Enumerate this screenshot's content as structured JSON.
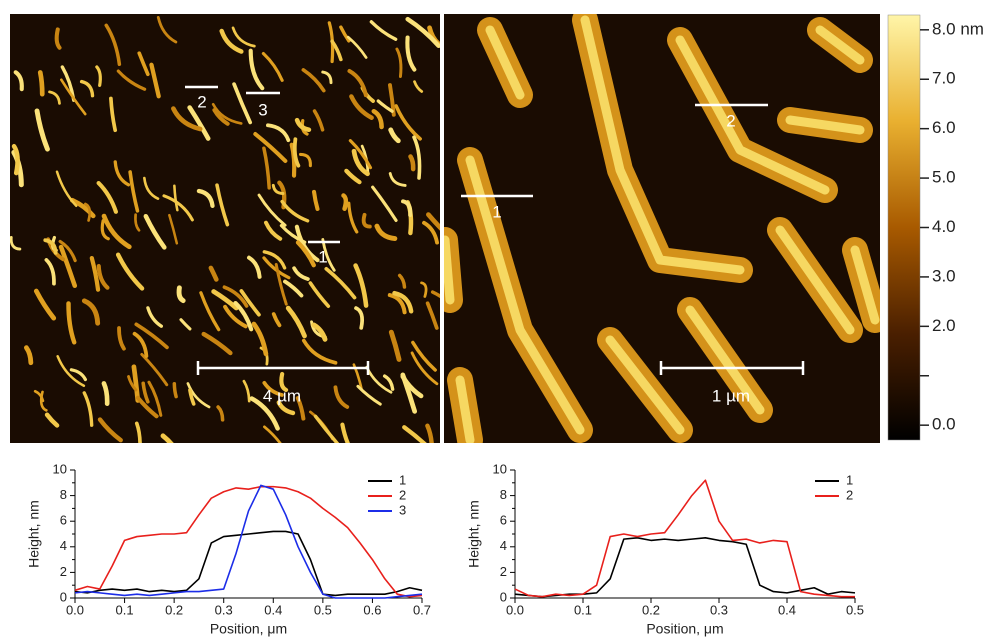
{
  "images": [
    {
      "scale_bar": "4 µm",
      "markers": [
        "1",
        "2",
        "3"
      ]
    },
    {
      "scale_bar": "1 µm",
      "markers": [
        "1",
        "2"
      ]
    }
  ],
  "colorbar": {
    "lim": [
      -0.3,
      8.3
    ],
    "ticks": [
      {
        "value": 8,
        "label": "8.0 nm"
      },
      {
        "value": 7,
        "label": "7.0"
      },
      {
        "value": 6,
        "label": "6.0"
      },
      {
        "value": 5,
        "label": "5.0"
      },
      {
        "value": 4,
        "label": "4.0"
      },
      {
        "value": 3,
        "label": "3.0"
      },
      {
        "value": 2,
        "label": "2.0"
      },
      {
        "value": 0,
        "label": "0.0"
      }
    ],
    "minor_ticks": [
      1
    ]
  },
  "chart_data": [
    {
      "type": "line",
      "xlabel": "Position, μm",
      "ylabel": "Height, nm",
      "x": [
        0,
        0.025,
        0.05,
        0.075,
        0.1,
        0.125,
        0.15,
        0.175,
        0.2,
        0.225,
        0.25,
        0.275,
        0.3,
        0.325,
        0.35,
        0.375,
        0.4,
        0.425,
        0.45,
        0.475,
        0.5,
        0.525,
        0.55,
        0.575,
        0.6,
        0.625,
        0.65,
        0.675,
        0.7
      ],
      "xlim": [
        0,
        0.7
      ],
      "xticks": [
        {
          "value": 0,
          "label": "0.0"
        },
        {
          "value": 0.1,
          "label": "0.1"
        },
        {
          "value": 0.2,
          "label": "0.2"
        },
        {
          "value": 0.3,
          "label": "0.3"
        },
        {
          "value": 0.4,
          "label": "0.4"
        },
        {
          "value": 0.5,
          "label": "0.5"
        },
        {
          "value": 0.6,
          "label": "0.6"
        },
        {
          "value": 0.7,
          "label": "0.7"
        }
      ],
      "ylim": [
        0,
        10
      ],
      "yticks": [
        0,
        2,
        4,
        6,
        8,
        10
      ],
      "series": [
        {
          "name": "1",
          "color": "#000000",
          "values": [
            0.5,
            0.4,
            0.6,
            0.7,
            0.6,
            0.7,
            0.5,
            0.6,
            0.5,
            0.6,
            1.5,
            4.3,
            4.8,
            4.9,
            5.0,
            5.1,
            5.2,
            5.2,
            5.0,
            3.0,
            0.3,
            0.2,
            0.3,
            0.3,
            0.3,
            0.3,
            0.5,
            0.8,
            0.6
          ]
        },
        {
          "name": "2",
          "color": "#e8201c",
          "values": [
            0.6,
            0.9,
            0.7,
            2.5,
            4.5,
            4.8,
            4.9,
            5.0,
            5.0,
            5.1,
            6.5,
            7.8,
            8.3,
            8.6,
            8.5,
            8.7,
            8.7,
            8.6,
            8.3,
            7.8,
            7.0,
            6.3,
            5.5,
            4.3,
            3.0,
            1.5,
            0.3,
            0.1,
            0.2
          ]
        },
        {
          "name": "3",
          "color": "#1c2de8",
          "values": [
            0.4,
            0.5,
            0.4,
            0.3,
            0.2,
            0.3,
            0.2,
            0.3,
            0.4,
            0.5,
            0.5,
            0.6,
            0.7,
            3.5,
            6.8,
            8.8,
            8.5,
            6.5,
            4.0,
            2.0,
            0.3,
            0,
            0,
            0,
            0,
            0,
            0.1,
            0.2,
            0.3
          ]
        }
      ]
    },
    {
      "type": "line",
      "xlabel": "Position, μm",
      "ylabel": "Height, nm",
      "x": [
        0,
        0.02,
        0.04,
        0.06,
        0.08,
        0.1,
        0.12,
        0.14,
        0.16,
        0.18,
        0.2,
        0.22,
        0.24,
        0.26,
        0.28,
        0.3,
        0.32,
        0.34,
        0.36,
        0.38,
        0.4,
        0.42,
        0.44,
        0.46,
        0.48,
        0.5
      ],
      "xlim": [
        0,
        0.5
      ],
      "xticks": [
        {
          "value": 0,
          "label": "0.0"
        },
        {
          "value": 0.1,
          "label": "0.1"
        },
        {
          "value": 0.2,
          "label": "0.2"
        },
        {
          "value": 0.3,
          "label": "0.3"
        },
        {
          "value": 0.4,
          "label": "0.4"
        },
        {
          "value": 0.5,
          "label": "0.5"
        }
      ],
      "ylim": [
        0,
        10
      ],
      "yticks": [
        0,
        2,
        4,
        6,
        8,
        10
      ],
      "series": [
        {
          "name": "1",
          "color": "#000000",
          "values": [
            0.3,
            0.2,
            0.1,
            0.2,
            0.3,
            0.3,
            0.4,
            1.5,
            4.6,
            4.7,
            4.5,
            4.6,
            4.5,
            4.6,
            4.7,
            4.5,
            4.4,
            4.2,
            1.0,
            0.5,
            0.4,
            0.6,
            0.8,
            0.3,
            0.5,
            0.4
          ]
        },
        {
          "name": "2",
          "color": "#e8201c",
          "values": [
            0.7,
            0.2,
            0.1,
            0.3,
            0.2,
            0.3,
            1.0,
            4.8,
            5.0,
            4.8,
            5.0,
            5.1,
            6.5,
            8.0,
            9.2,
            6.0,
            4.5,
            4.6,
            4.3,
            4.5,
            4.4,
            0.5,
            0.3,
            0.2,
            0.1,
            0.1
          ]
        }
      ]
    }
  ]
}
